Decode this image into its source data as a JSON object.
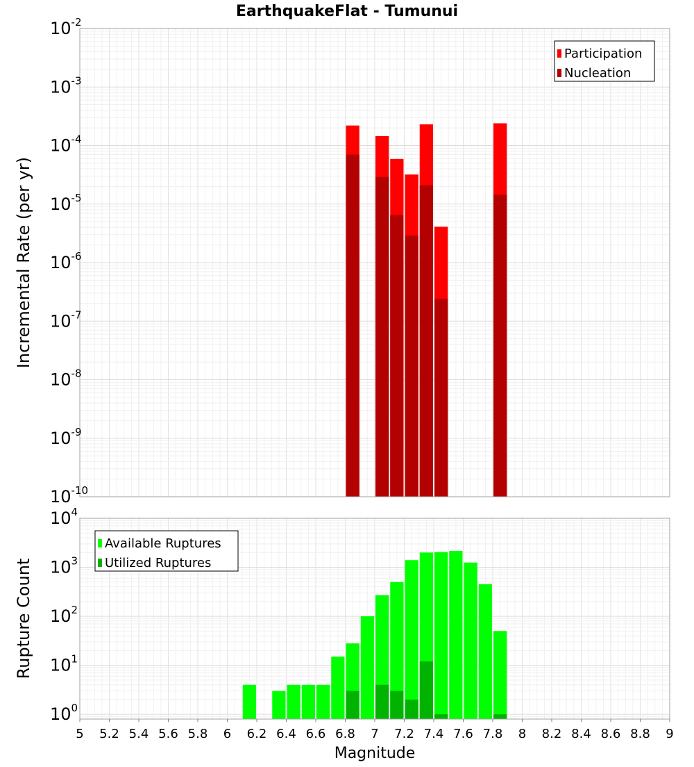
{
  "chart_data": [
    {
      "type": "bar",
      "title": "EarthquakeFlat - Tumunui",
      "xlabel": "",
      "ylabel": "Incremental Rate (per yr)",
      "y_scale": "log",
      "ylim": [
        1e-10,
        0.01
      ],
      "y_tick_exponents": [
        "-10",
        "-9",
        "-8",
        "-7",
        "-6",
        "-5",
        "-4",
        "-3",
        "-2"
      ],
      "y_tick_mantissa": "10",
      "xlim": [
        5,
        9
      ],
      "bar_width": 0.1,
      "grid": true,
      "legend_position": "top-right",
      "series": [
        {
          "name": "Participation",
          "color": "#ff0000",
          "x": [
            6.85,
            7.05,
            7.15,
            7.25,
            7.35,
            7.45,
            7.85
          ],
          "values": [
            0.00022,
            0.000145,
            5.9e-05,
            3.2e-05,
            0.00023,
            4.1e-06,
            0.00024
          ]
        },
        {
          "name": "Nucleation",
          "color": "#b30000",
          "x": [
            6.85,
            7.05,
            7.15,
            7.25,
            7.35,
            7.45,
            7.85
          ],
          "values": [
            7e-05,
            2.9e-05,
            6.5e-06,
            2.9e-06,
            2.1e-05,
            2.4e-07,
            1.45e-05
          ]
        }
      ]
    },
    {
      "type": "bar",
      "title": "",
      "xlabel": "Magnitude",
      "ylabel": "Rupture Count",
      "y_scale": "log",
      "ylim": [
        0.8,
        10000
      ],
      "y_tick_exponents": [
        "0",
        "1",
        "2",
        "3",
        "4"
      ],
      "y_tick_mantissa": "10",
      "xlim": [
        5,
        9
      ],
      "x_ticks": [
        "5",
        "5.2",
        "5.4",
        "5.6",
        "5.8",
        "6",
        "6.2",
        "6.4",
        "6.6",
        "6.8",
        "7",
        "7.2",
        "7.4",
        "7.6",
        "7.8",
        "8",
        "8.2",
        "8.4",
        "8.6",
        "8.8",
        "9"
      ],
      "bar_width": 0.1,
      "grid": true,
      "legend_position": "top-left",
      "series": [
        {
          "name": "Available Ruptures",
          "color": "#00ff00",
          "x": [
            6.15,
            6.35,
            6.45,
            6.55,
            6.65,
            6.75,
            6.85,
            6.95,
            7.05,
            7.15,
            7.25,
            7.35,
            7.45,
            7.55,
            7.65,
            7.75,
            7.85
          ],
          "values": [
            4,
            3,
            4,
            4,
            4,
            15,
            28,
            100,
            270,
            500,
            1400,
            2000,
            2050,
            2150,
            1250,
            450,
            50
          ]
        },
        {
          "name": "Utilized Ruptures",
          "color": "#00b300",
          "x": [
            6.85,
            7.05,
            7.15,
            7.25,
            7.35,
            7.45,
            7.85
          ],
          "values": [
            3,
            4,
            3,
            2,
            12,
            1,
            1
          ]
        }
      ]
    }
  ]
}
